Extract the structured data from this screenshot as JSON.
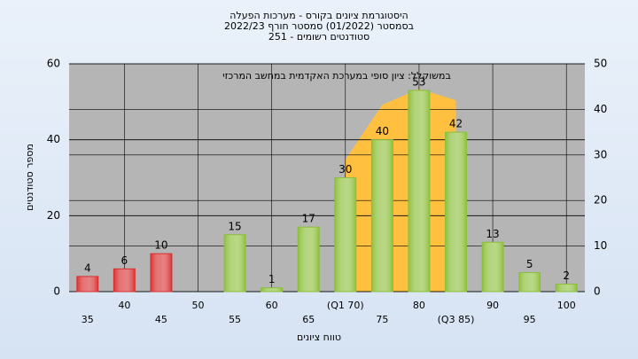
{
  "chart_data": {
    "type": "bar",
    "title": "היסטוגרמת ציונים בקורס - מערכות הפעלה",
    "subtitle": "בסמסטר  (01/2022)  סמסטר חורף 2022/23",
    "subtitle2": "סטודנטים רשומים - 251",
    "annotation": "במשוקלל: ציון סופי במערכת האקדמית במחשב המרכזי",
    "x_label": "טווח ציונים",
    "y_label": "מספר סטודנטים",
    "categories": [
      "35",
      "40",
      "45",
      "50",
      "55",
      "60",
      "65",
      "(Q1 70)",
      "75",
      "80",
      "(Q3 85)",
      "90",
      "95",
      "100"
    ],
    "values": [
      4,
      6,
      10,
      null,
      15,
      1,
      17,
      30,
      40,
      53,
      42,
      13,
      5,
      2
    ],
    "colors": [
      "#d83030",
      "#d83030",
      "#d83030",
      null,
      "#8cbf3a",
      "#8cbf3a",
      "#8cbf3a",
      "#8cbf3a",
      "#8cbf3a",
      "#8cbf3a",
      "#8cbf3a",
      "#8cbf3a",
      "#8cbf3a",
      "#8cbf3a"
    ],
    "area": {
      "color": "#ffc040",
      "axis": "y2",
      "values": [
        null,
        null,
        null,
        null,
        null,
        null,
        null,
        29,
        41,
        44.5,
        42,
        null,
        null,
        null
      ]
    },
    "ylim": [
      0,
      60
    ],
    "yticks": [
      0,
      20,
      40,
      60
    ],
    "y2lim": [
      0,
      50
    ],
    "y2ticks": [
      0,
      10,
      20,
      30,
      40,
      50
    ],
    "grid": true
  }
}
